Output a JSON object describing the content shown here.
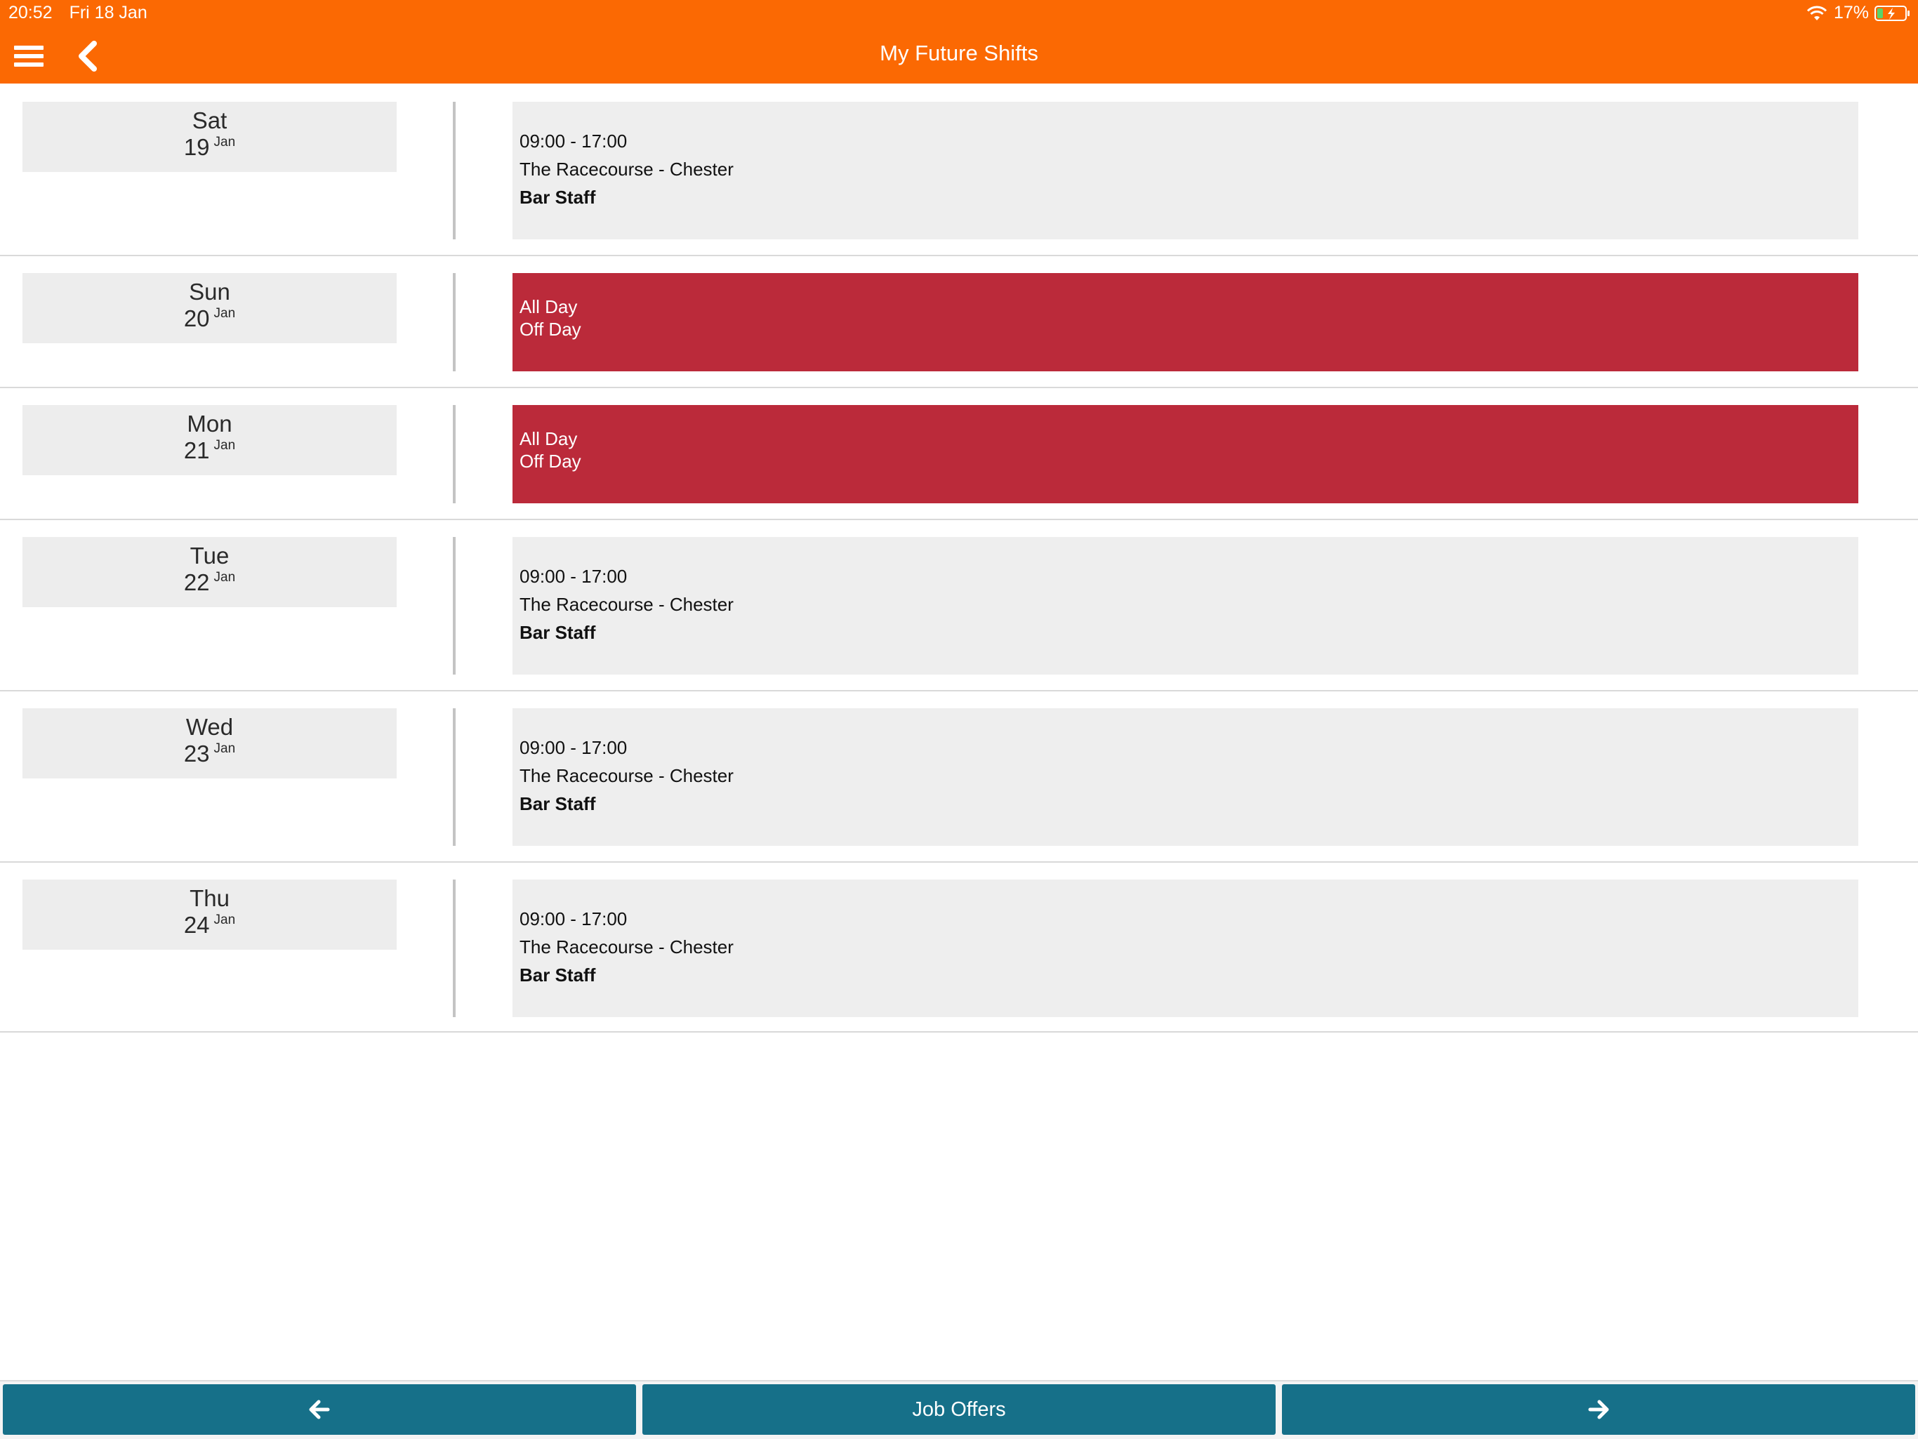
{
  "status_bar": {
    "time": "20:52",
    "date": "Fri 18 Jan",
    "battery": "17%"
  },
  "header": {
    "title": "My Future Shifts",
    "menu_icon": "hamburger-menu-icon",
    "back_icon": "chevron-left-icon"
  },
  "colors": {
    "header": "#fb6903",
    "off_day": "#bb2a3a",
    "footer_button": "#167089",
    "card": "#eeeeee"
  },
  "days": [
    {
      "day": "Sat",
      "date": "19",
      "month": "Jan",
      "type": "shift",
      "lines": [
        "09:00 - 17:00",
        "The Racecourse - Chester",
        "Bar Staff"
      ]
    },
    {
      "day": "Sun",
      "date": "20",
      "month": "Jan",
      "type": "off",
      "lines": [
        "All Day",
        "Off Day"
      ]
    },
    {
      "day": "Mon",
      "date": "21",
      "month": "Jan",
      "type": "off",
      "lines": [
        "All Day",
        "Off Day"
      ]
    },
    {
      "day": "Tue",
      "date": "22",
      "month": "Jan",
      "type": "shift",
      "lines": [
        "09:00 - 17:00",
        "The Racecourse - Chester",
        "Bar Staff"
      ]
    },
    {
      "day": "Wed",
      "date": "23",
      "month": "Jan",
      "type": "shift",
      "lines": [
        "09:00 - 17:00",
        "The Racecourse - Chester",
        "Bar Staff"
      ]
    },
    {
      "day": "Thu",
      "date": "24",
      "month": "Jan",
      "type": "shift",
      "lines": [
        "09:00 - 17:00",
        "The Racecourse - Chester",
        "Bar Staff"
      ]
    }
  ],
  "footer": {
    "prev_icon": "arrow-left-icon",
    "center_label": "Job Offers",
    "next_icon": "arrow-right-icon"
  }
}
